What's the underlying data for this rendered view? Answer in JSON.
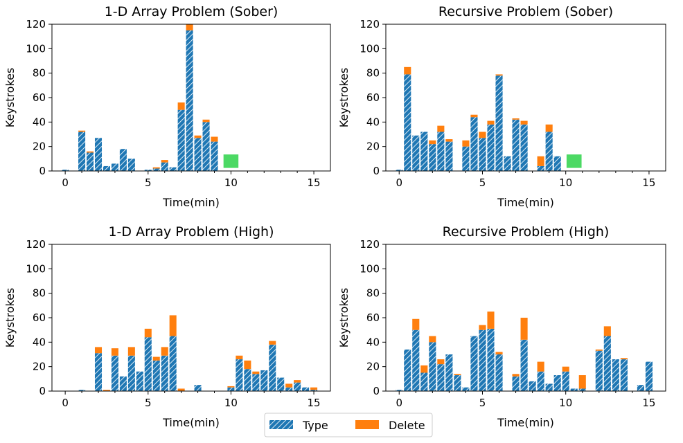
{
  "chart_data": [
    {
      "type": "bar",
      "stacked": true,
      "title": "1-D Array Problem (Sober)",
      "xlabel": "Time(min)",
      "ylabel": "Keystrokes",
      "xlim": [
        -0.8,
        16
      ],
      "ylim": [
        0,
        120
      ],
      "xticks": [
        0,
        5,
        10,
        15
      ],
      "yticks": [
        0,
        20,
        40,
        60,
        80,
        100,
        120
      ],
      "x": [
        0,
        1,
        1.5,
        2,
        2.5,
        3,
        3.5,
        4,
        5,
        5.5,
        6,
        6.5,
        7,
        7.5,
        8,
        8.5,
        9
      ],
      "series": [
        {
          "name": "Type",
          "values": [
            1,
            32,
            15,
            27,
            4,
            6,
            18,
            10,
            1,
            2,
            7,
            3,
            50,
            115,
            27,
            40,
            24
          ]
        },
        {
          "name": "Delete",
          "values": [
            0,
            1,
            1,
            0,
            0,
            0,
            0,
            0,
            0,
            1,
            2,
            0,
            6,
            5,
            2,
            2,
            4
          ]
        }
      ],
      "end_marker": {
        "x": 10,
        "y": 8,
        "label": "end",
        "color": "#4cd964"
      }
    },
    {
      "type": "bar",
      "stacked": true,
      "title": "Recursive Problem (Sober)",
      "xlabel": "Time(min)",
      "ylabel": "Keystrokes",
      "xlim": [
        -0.8,
        16
      ],
      "ylim": [
        0,
        120
      ],
      "xticks": [
        0,
        5,
        10,
        15
      ],
      "yticks": [
        0,
        20,
        40,
        60,
        80,
        100,
        120
      ],
      "x": [
        0,
        0.5,
        1,
        1.5,
        2,
        2.5,
        3,
        4,
        4.5,
        5,
        5.5,
        6,
        6.5,
        7,
        7.5,
        8.5,
        9,
        9.5
      ],
      "series": [
        {
          "name": "Type",
          "values": [
            1,
            79,
            29,
            32,
            22,
            32,
            24,
            20,
            44,
            27,
            38,
            78,
            12,
            42,
            38,
            4,
            32,
            12
          ]
        },
        {
          "name": "Delete",
          "values": [
            0,
            6,
            0,
            0,
            3,
            5,
            2,
            5,
            2,
            5,
            3,
            1,
            0,
            1,
            3,
            8,
            6,
            0
          ]
        }
      ],
      "end_marker": {
        "x": 10.5,
        "y": 8,
        "label": "end",
        "color": "#4cd964"
      }
    },
    {
      "type": "bar",
      "stacked": true,
      "title": "1-D Array Problem (High)",
      "xlabel": "Time(min)",
      "ylabel": "Keystrokes",
      "xlim": [
        -0.8,
        16
      ],
      "ylim": [
        0,
        120
      ],
      "xticks": [
        0,
        5,
        10,
        15
      ],
      "yticks": [
        0,
        20,
        40,
        60,
        80,
        100,
        120
      ],
      "x": [
        1,
        2,
        2.5,
        3,
        3.5,
        4,
        4.5,
        5,
        5.5,
        6,
        6.5,
        7,
        8,
        10,
        10.5,
        11,
        11.5,
        12,
        12.5,
        13,
        13.5,
        14,
        14.5,
        15
      ],
      "series": [
        {
          "name": "Type",
          "values": [
            1,
            31,
            0,
            29,
            12,
            29,
            16,
            44,
            25,
            29,
            45,
            0,
            5,
            3,
            26,
            18,
            14,
            17,
            38,
            11,
            3,
            7,
            3,
            1
          ]
        },
        {
          "name": "Delete",
          "values": [
            0,
            5,
            1,
            6,
            0,
            7,
            0,
            7,
            3,
            7,
            17,
            2,
            0,
            1,
            3,
            7,
            2,
            0,
            3,
            0,
            3,
            2,
            0,
            2
          ]
        }
      ]
    },
    {
      "type": "bar",
      "stacked": true,
      "title": "Recursive Problem (High)",
      "xlabel": "Time(min)",
      "ylabel": "Keystrokes",
      "xlim": [
        -0.8,
        16
      ],
      "ylim": [
        0,
        120
      ],
      "xticks": [
        0,
        5,
        10,
        15
      ],
      "yticks": [
        0,
        20,
        40,
        60,
        80,
        100,
        120
      ],
      "x": [
        0,
        0.5,
        1,
        1.5,
        2,
        2.5,
        3,
        3.5,
        4,
        4.5,
        5,
        5.5,
        6,
        6.5,
        7,
        7.5,
        8,
        8.5,
        9,
        9.5,
        10,
        10.5,
        11,
        12,
        12.5,
        13,
        13.5,
        14.5,
        15
      ],
      "series": [
        {
          "name": "Type",
          "values": [
            1,
            34,
            50,
            15,
            40,
            22,
            30,
            13,
            3,
            45,
            50,
            51,
            30,
            0,
            12,
            42,
            8,
            16,
            6,
            13,
            16,
            2,
            2,
            33,
            45,
            26,
            26,
            5,
            24
          ]
        },
        {
          "name": "Delete",
          "values": [
            0,
            0,
            9,
            6,
            5,
            4,
            0,
            1,
            0,
            0,
            4,
            14,
            2,
            0,
            2,
            18,
            0,
            8,
            0,
            0,
            4,
            0,
            11,
            1,
            8,
            0,
            1,
            0,
            0
          ]
        }
      ]
    }
  ],
  "legend": {
    "items": [
      "Type",
      "Delete"
    ],
    "placement": "bottom-center"
  },
  "colors": {
    "type": "#1f77b4",
    "delete": "#ff7f0e",
    "end": "#4cd964"
  }
}
